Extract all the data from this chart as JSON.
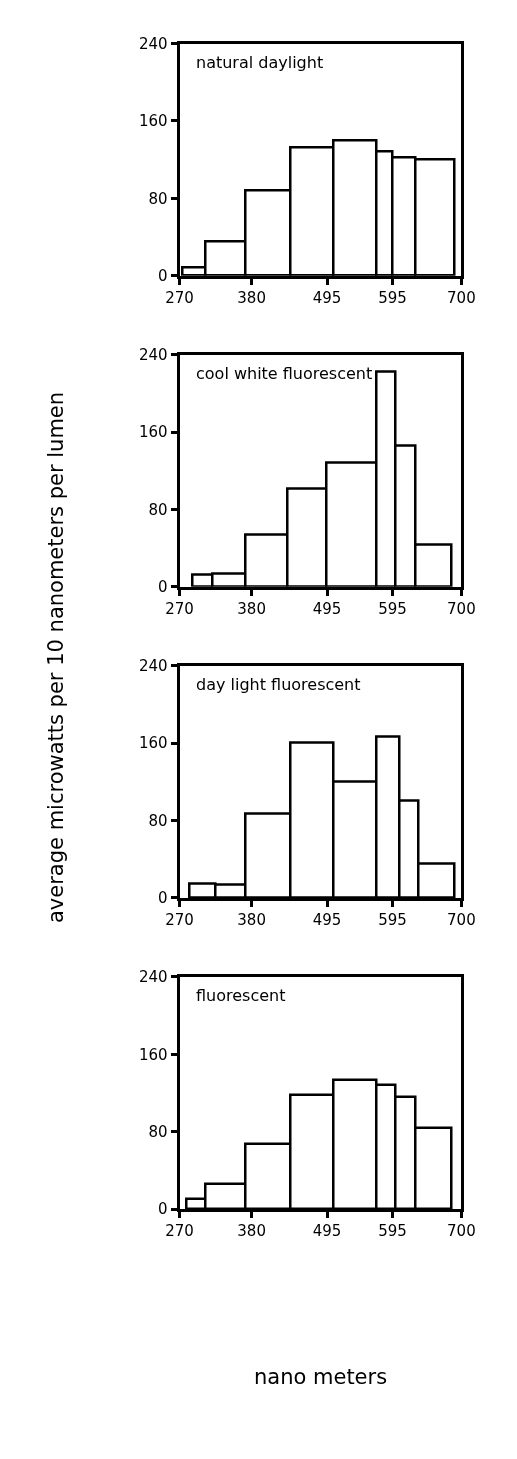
{
  "chart_data": [
    {
      "type": "histogram",
      "title": "natural daylight",
      "ylabel": "average microwatts per 10 nanometers per lumen",
      "bins": [
        275,
        310,
        370,
        440,
        505,
        570,
        595,
        630,
        690
      ],
      "values": [
        8,
        35,
        88,
        132,
        140,
        128,
        122,
        120
      ],
      "color": "#ffffff",
      "xlim": [
        270,
        700
      ],
      "xticks": [
        270,
        380,
        495,
        595,
        700
      ],
      "ylim": [
        0,
        240
      ],
      "yticks": [
        0,
        80,
        160,
        240
      ]
    },
    {
      "type": "histogram",
      "title": "cool white fluorescent",
      "bins": [
        290,
        320,
        370,
        435,
        495,
        570,
        600,
        630,
        685
      ],
      "values": [
        13,
        14,
        54,
        101,
        128,
        222,
        146,
        44
      ],
      "color": "#ffffff",
      "xlim": [
        270,
        700
      ],
      "xticks": [
        270,
        380,
        495,
        595,
        700
      ],
      "ylim": [
        0,
        240
      ],
      "yticks": [
        0,
        80,
        160,
        240
      ]
    },
    {
      "type": "histogram",
      "title": "day light fluorescent",
      "bins": [
        285,
        325,
        370,
        440,
        505,
        570,
        605,
        635,
        690
      ],
      "values": [
        15,
        14,
        87,
        160,
        120,
        167,
        100,
        35
      ],
      "color": "#ffffff",
      "xlim": [
        270,
        700
      ],
      "xticks": [
        270,
        380,
        495,
        595,
        700
      ],
      "ylim": [
        0,
        240
      ],
      "yticks": [
        0,
        80,
        160,
        240
      ]
    },
    {
      "type": "histogram",
      "title": "fluorescent",
      "xlabel": "nano meters",
      "bins": [
        280,
        310,
        370,
        440,
        505,
        570,
        600,
        630,
        685
      ],
      "values": [
        10,
        26,
        67,
        118,
        134,
        128,
        116,
        84
      ],
      "color": "#ffffff",
      "xlim": [
        270,
        700
      ],
      "xticks": [
        270,
        380,
        495,
        595,
        700
      ],
      "ylim": [
        0,
        240
      ],
      "yticks": [
        0,
        80,
        160,
        240
      ]
    }
  ]
}
